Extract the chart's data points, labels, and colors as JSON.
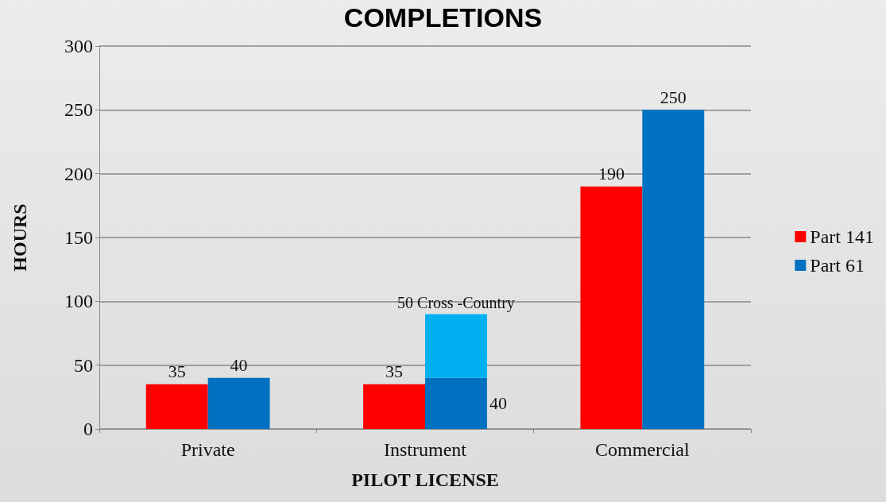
{
  "chart_data": {
    "type": "bar",
    "title": "COMPLETIONS",
    "xlabel": "PILOT LICENSE",
    "ylabel": "HOURS",
    "categories": [
      "Private",
      "Instrument",
      "Commercial"
    ],
    "series": [
      {
        "name": "Part 141",
        "color": "#ff0000",
        "values": [
          35,
          35,
          190
        ],
        "value_labels": [
          "35",
          "35",
          "190"
        ]
      },
      {
        "name": "Part 61",
        "color": "#0070c0",
        "values": [
          40,
          40,
          250
        ],
        "value_labels": [
          "40",
          "40",
          "250"
        ]
      },
      {
        "color": "#00b0f0",
        "values": [
          null,
          50,
          null
        ],
        "base": [
          null,
          40,
          null
        ],
        "value_labels": [
          null,
          "50 Cross -Country",
          null
        ]
      }
    ],
    "ylim": [
      0,
      300
    ],
    "yticks": [
      0,
      50,
      100,
      150,
      200,
      250,
      300
    ],
    "grid": "y",
    "legend": "right"
  }
}
